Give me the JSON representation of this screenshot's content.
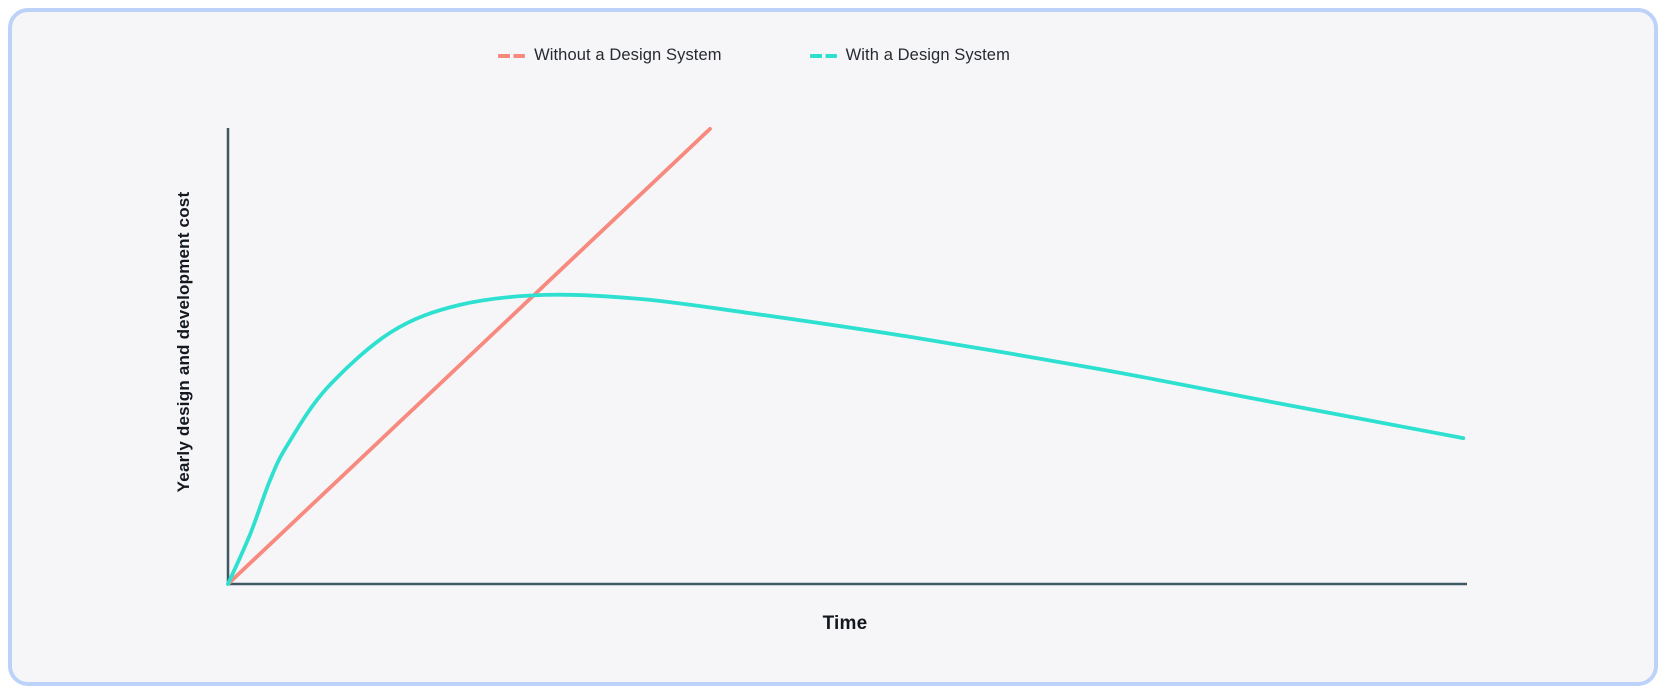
{
  "card": {
    "background": "#f6f6f8",
    "border_color": "#bdd2f8"
  },
  "chart_data": {
    "type": "line",
    "xlabel": "Time",
    "ylabel": "Yearly design and development cost",
    "x_range": [
      0,
      100
    ],
    "y_range": [
      0,
      100
    ],
    "grid": false,
    "axes_visible": true,
    "axis_color": "#3d5963",
    "legend_position": "top-center",
    "series": [
      {
        "name": "Without a Design System",
        "color": "#f8897e",
        "shape": "straight-line",
        "points": [
          [
            0,
            0
          ],
          [
            38.9,
            99.8
          ]
        ]
      },
      {
        "name": "With a Design System",
        "color": "#2ee0d0",
        "shape": "rise-then-gentle-decline",
        "points": [
          [
            0,
            0
          ],
          [
            1.8,
            11.0
          ],
          [
            3.4,
            22.8
          ],
          [
            4.8,
            30.5
          ],
          [
            8.0,
            43.0
          ],
          [
            13.2,
            55.3
          ],
          [
            18.7,
            61.2
          ],
          [
            25.6,
            63.4
          ],
          [
            33.3,
            62.5
          ],
          [
            42.1,
            59.4
          ],
          [
            55.0,
            54.2
          ],
          [
            70.4,
            47.1
          ],
          [
            83.3,
            40.4
          ],
          [
            99.7,
            32.0
          ]
        ]
      }
    ]
  }
}
